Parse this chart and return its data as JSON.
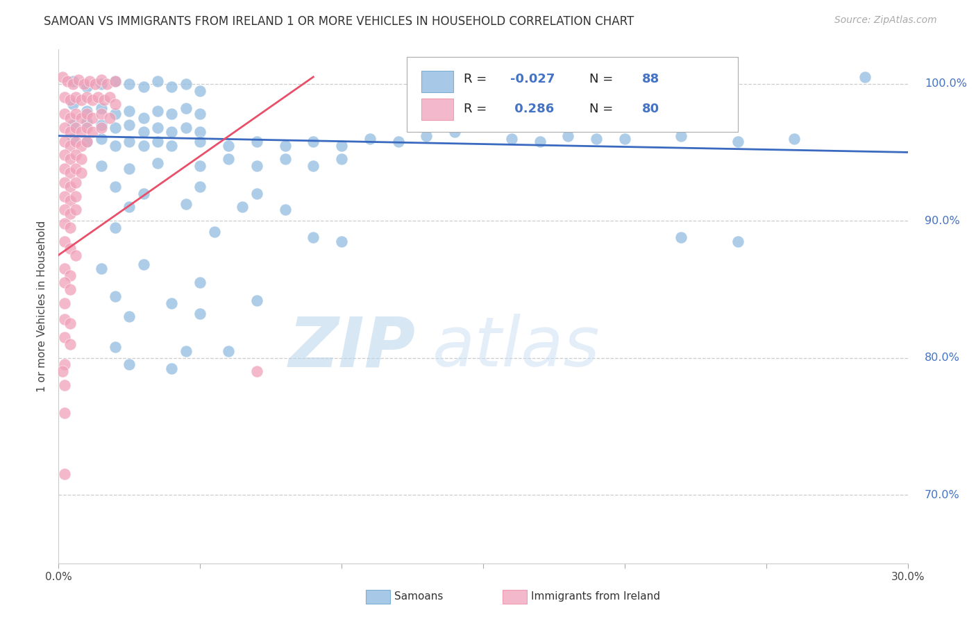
{
  "title": "SAMOAN VS IMMIGRANTS FROM IRELAND 1 OR MORE VEHICLES IN HOUSEHOLD CORRELATION CHART",
  "source": "Source: ZipAtlas.com",
  "ylabel": "1 or more Vehicles in Household",
  "xlim": [
    0.0,
    30.0
  ],
  "ylim": [
    65.0,
    102.5
  ],
  "yticks": [
    70.0,
    80.0,
    90.0,
    100.0
  ],
  "ytick_labels": [
    "70.0%",
    "80.0%",
    "90.0%",
    "100.0%"
  ],
  "xtick_vals": [
    0.0,
    5.0,
    10.0,
    15.0,
    20.0,
    25.0,
    30.0
  ],
  "xtick_labels": [
    "0.0%",
    "",
    "",
    "",
    "",
    "",
    "30.0%"
  ],
  "watermark_zip": "ZIP",
  "watermark_atlas": "atlas",
  "blue_color": "#92bce0",
  "pink_color": "#f0a0b8",
  "blue_line_color": "#3a6abf",
  "pink_line_color": "#e8506a",
  "blue_scatter": [
    [
      0.5,
      100.2
    ],
    [
      1.0,
      99.8
    ],
    [
      1.5,
      100.0
    ],
    [
      2.0,
      100.2
    ],
    [
      2.5,
      100.0
    ],
    [
      3.0,
      99.8
    ],
    [
      3.5,
      100.2
    ],
    [
      4.0,
      99.8
    ],
    [
      4.5,
      100.0
    ],
    [
      5.0,
      99.5
    ],
    [
      0.5,
      98.5
    ],
    [
      1.0,
      98.0
    ],
    [
      1.5,
      98.2
    ],
    [
      2.0,
      97.8
    ],
    [
      2.5,
      98.0
    ],
    [
      3.0,
      97.5
    ],
    [
      3.5,
      98.0
    ],
    [
      4.0,
      97.8
    ],
    [
      4.5,
      98.2
    ],
    [
      5.0,
      97.8
    ],
    [
      0.5,
      97.0
    ],
    [
      1.0,
      97.2
    ],
    [
      1.5,
      97.0
    ],
    [
      2.0,
      96.8
    ],
    [
      2.5,
      97.0
    ],
    [
      3.0,
      96.5
    ],
    [
      3.5,
      96.8
    ],
    [
      4.0,
      96.5
    ],
    [
      4.5,
      96.8
    ],
    [
      5.0,
      96.5
    ],
    [
      0.5,
      96.0
    ],
    [
      1.0,
      95.8
    ],
    [
      1.5,
      96.0
    ],
    [
      2.0,
      95.5
    ],
    [
      2.5,
      95.8
    ],
    [
      3.0,
      95.5
    ],
    [
      3.5,
      95.8
    ],
    [
      4.0,
      95.5
    ],
    [
      5.0,
      95.8
    ],
    [
      6.0,
      95.5
    ],
    [
      7.0,
      95.8
    ],
    [
      8.0,
      95.5
    ],
    [
      9.0,
      95.8
    ],
    [
      10.0,
      95.5
    ],
    [
      11.0,
      96.0
    ],
    [
      12.0,
      95.8
    ],
    [
      13.0,
      96.2
    ],
    [
      14.0,
      96.5
    ],
    [
      16.0,
      96.0
    ],
    [
      18.0,
      96.2
    ],
    [
      20.0,
      96.0
    ],
    [
      22.0,
      96.2
    ],
    [
      24.0,
      95.8
    ],
    [
      26.0,
      96.0
    ],
    [
      28.5,
      100.5
    ],
    [
      1.5,
      94.0
    ],
    [
      2.5,
      93.8
    ],
    [
      3.5,
      94.2
    ],
    [
      5.0,
      94.0
    ],
    [
      6.0,
      94.5
    ],
    [
      7.0,
      94.0
    ],
    [
      8.0,
      94.5
    ],
    [
      9.0,
      94.0
    ],
    [
      10.0,
      94.5
    ],
    [
      2.0,
      92.5
    ],
    [
      3.0,
      92.0
    ],
    [
      5.0,
      92.5
    ],
    [
      7.0,
      92.0
    ],
    [
      2.5,
      91.0
    ],
    [
      4.5,
      91.2
    ],
    [
      6.5,
      91.0
    ],
    [
      8.0,
      90.8
    ],
    [
      2.0,
      89.5
    ],
    [
      5.5,
      89.2
    ],
    [
      10.0,
      88.5
    ],
    [
      1.5,
      86.5
    ],
    [
      3.0,
      86.8
    ],
    [
      5.0,
      85.5
    ],
    [
      9.0,
      88.8
    ],
    [
      2.0,
      84.5
    ],
    [
      4.0,
      84.0
    ],
    [
      7.0,
      84.2
    ],
    [
      2.5,
      83.0
    ],
    [
      5.0,
      83.2
    ],
    [
      2.0,
      80.8
    ],
    [
      4.5,
      80.5
    ],
    [
      6.0,
      80.5
    ],
    [
      2.5,
      79.5
    ],
    [
      4.0,
      79.2
    ],
    [
      22.0,
      88.8
    ],
    [
      24.0,
      88.5
    ],
    [
      17.0,
      95.8
    ],
    [
      19.0,
      96.0
    ]
  ],
  "pink_scatter": [
    [
      0.15,
      100.5
    ],
    [
      0.3,
      100.2
    ],
    [
      0.5,
      100.0
    ],
    [
      0.7,
      100.3
    ],
    [
      0.9,
      100.0
    ],
    [
      1.1,
      100.2
    ],
    [
      1.3,
      100.0
    ],
    [
      1.5,
      100.3
    ],
    [
      1.7,
      100.0
    ],
    [
      2.0,
      100.2
    ],
    [
      0.2,
      99.0
    ],
    [
      0.4,
      98.8
    ],
    [
      0.6,
      99.0
    ],
    [
      0.8,
      98.8
    ],
    [
      1.0,
      99.0
    ],
    [
      1.2,
      98.8
    ],
    [
      1.4,
      99.0
    ],
    [
      1.6,
      98.8
    ],
    [
      1.8,
      99.0
    ],
    [
      2.0,
      98.5
    ],
    [
      0.2,
      97.8
    ],
    [
      0.4,
      97.5
    ],
    [
      0.6,
      97.8
    ],
    [
      0.8,
      97.5
    ],
    [
      1.0,
      97.8
    ],
    [
      1.2,
      97.5
    ],
    [
      1.5,
      97.8
    ],
    [
      1.8,
      97.5
    ],
    [
      0.2,
      96.8
    ],
    [
      0.4,
      96.5
    ],
    [
      0.6,
      96.8
    ],
    [
      0.8,
      96.5
    ],
    [
      1.0,
      96.8
    ],
    [
      1.2,
      96.5
    ],
    [
      1.5,
      96.8
    ],
    [
      0.2,
      95.8
    ],
    [
      0.4,
      95.5
    ],
    [
      0.6,
      95.8
    ],
    [
      0.8,
      95.5
    ],
    [
      1.0,
      95.8
    ],
    [
      0.2,
      94.8
    ],
    [
      0.4,
      94.5
    ],
    [
      0.6,
      94.8
    ],
    [
      0.8,
      94.5
    ],
    [
      0.2,
      93.8
    ],
    [
      0.4,
      93.5
    ],
    [
      0.6,
      93.8
    ],
    [
      0.8,
      93.5
    ],
    [
      0.2,
      92.8
    ],
    [
      0.4,
      92.5
    ],
    [
      0.6,
      92.8
    ],
    [
      0.2,
      91.8
    ],
    [
      0.4,
      91.5
    ],
    [
      0.6,
      91.8
    ],
    [
      0.2,
      90.8
    ],
    [
      0.4,
      90.5
    ],
    [
      0.6,
      90.8
    ],
    [
      0.2,
      89.8
    ],
    [
      0.4,
      89.5
    ],
    [
      0.2,
      88.5
    ],
    [
      0.4,
      88.0
    ],
    [
      0.6,
      87.5
    ],
    [
      0.2,
      86.5
    ],
    [
      0.4,
      86.0
    ],
    [
      0.2,
      85.5
    ],
    [
      0.4,
      85.0
    ],
    [
      0.2,
      84.0
    ],
    [
      0.2,
      82.8
    ],
    [
      0.4,
      82.5
    ],
    [
      0.2,
      81.5
    ],
    [
      0.4,
      81.0
    ],
    [
      0.2,
      79.5
    ],
    [
      0.15,
      79.0
    ],
    [
      0.2,
      78.0
    ],
    [
      0.2,
      76.0
    ],
    [
      0.2,
      71.5
    ],
    [
      7.0,
      79.0
    ]
  ],
  "blue_line_x": [
    0.0,
    30.0
  ],
  "blue_line_y": [
    96.2,
    95.0
  ],
  "pink_line_x": [
    0.0,
    9.0
  ],
  "pink_line_y": [
    87.5,
    100.5
  ]
}
